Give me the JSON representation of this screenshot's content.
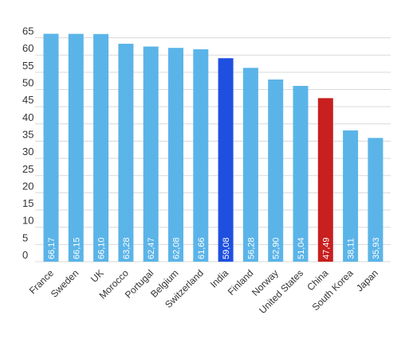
{
  "chart_data": {
    "type": "bar",
    "title": "",
    "xlabel": "",
    "ylabel": "",
    "categories": [
      "France",
      "Sweden",
      "UK",
      "Morocco",
      "Portugal",
      "Belgium",
      "Switzerland",
      "India",
      "Finland",
      "Norway",
      "United States",
      "China",
      "South Korea",
      "Japan"
    ],
    "values": [
      66.17,
      66.15,
      66.1,
      63.28,
      62.47,
      62.08,
      61.66,
      59.08,
      56.28,
      52.9,
      51.04,
      47.49,
      38.11,
      35.93
    ],
    "value_labels": [
      "66,17",
      "66,15",
      "66,10",
      "63,28",
      "62,47",
      "62,08",
      "61,66",
      "59,08",
      "56,28",
      "52,90",
      "51,04",
      "47,49",
      "38,11",
      "35,93"
    ],
    "ylim": [
      0,
      70
    ],
    "yticks": [
      0,
      5,
      10,
      15,
      20,
      25,
      30,
      35,
      40,
      45,
      50,
      55,
      60,
      65
    ],
    "grid": true,
    "colors": {
      "default": "#5bb4e8",
      "highlights": {
        "India": "#1f4fe0",
        "China": "#c81f1f"
      },
      "grid": "#d9d9d9",
      "tick_text": "#333333",
      "value_text": "#ffffff"
    }
  }
}
